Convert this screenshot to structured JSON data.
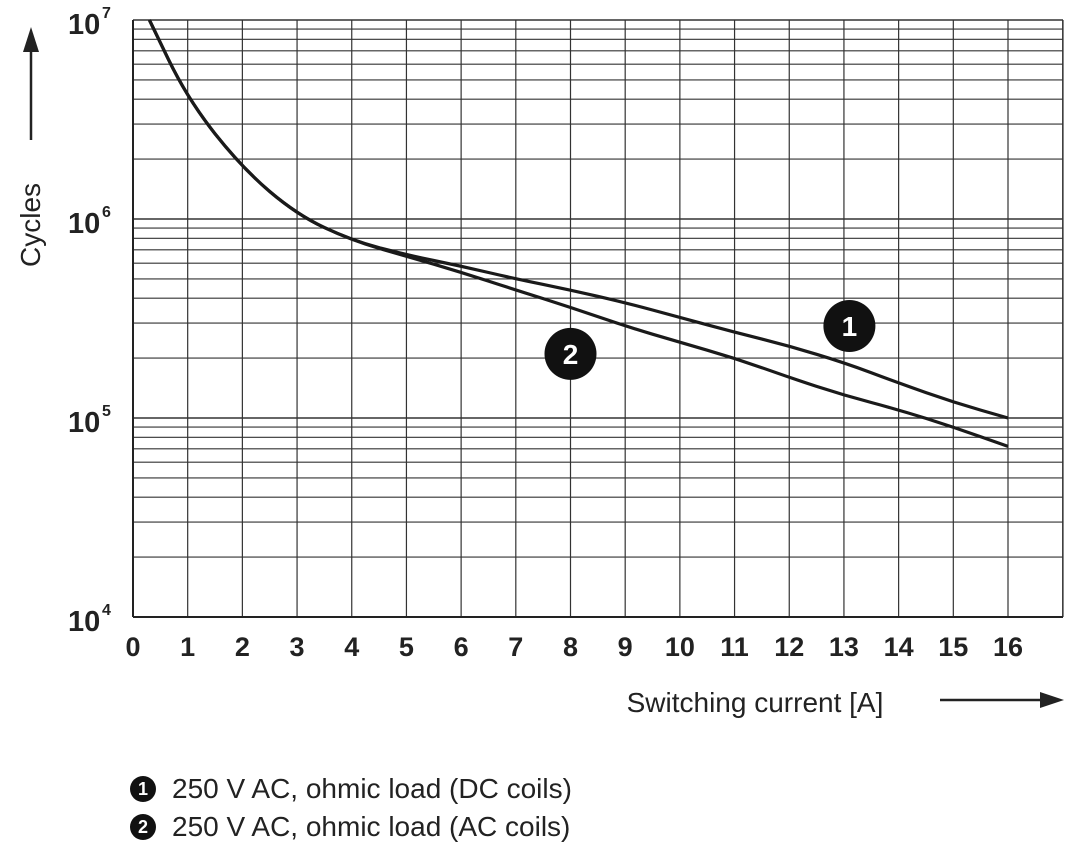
{
  "chart_data": {
    "type": "line",
    "xlabel": "Switching current [A]",
    "ylabel": "Cycles",
    "x_ticks": [
      "0",
      "1",
      "2",
      "3",
      "4",
      "5",
      "6",
      "7",
      "8",
      "9",
      "10",
      "11",
      "12",
      "13",
      "14",
      "15",
      "16"
    ],
    "y_ticks": [
      {
        "base": "10",
        "exp": "4",
        "value": 10000
      },
      {
        "base": "10",
        "exp": "5",
        "value": 100000
      },
      {
        "base": "10",
        "exp": "6",
        "value": 1000000
      },
      {
        "base": "10",
        "exp": "7",
        "value": 10000000
      }
    ],
    "xlim": [
      0,
      16
    ],
    "ylim": [
      10000,
      10000000
    ],
    "y_scale": "log",
    "grid": true,
    "series": [
      {
        "name": "250 V AC, ohmic load (DC coils)",
        "marker": "1",
        "x": [
          0.3,
          1,
          2,
          3,
          4,
          5,
          6,
          7,
          8,
          9,
          10,
          11,
          12,
          13,
          14,
          15,
          16
        ],
        "y": [
          10000000,
          4000000,
          1800000,
          1050000,
          780000,
          660000,
          580000,
          500000,
          440000,
          380000,
          320000,
          270000,
          230000,
          190000,
          150000,
          120000,
          100000
        ]
      },
      {
        "name": "250 V AC, ohmic load (AC coils)",
        "marker": "2",
        "x": [
          0.3,
          1,
          2,
          3,
          4,
          5,
          6,
          7,
          8,
          9,
          10,
          11,
          12,
          13,
          14,
          15,
          16
        ],
        "y": [
          10000000,
          4000000,
          1800000,
          1050000,
          780000,
          650000,
          540000,
          440000,
          360000,
          290000,
          240000,
          200000,
          160000,
          130000,
          110000,
          90000,
          72000
        ]
      }
    ],
    "markers": [
      {
        "label": "1",
        "x": 13.1,
        "y": 290000
      },
      {
        "label": "2",
        "x": 8.0,
        "y": 210000
      }
    ]
  },
  "legend": [
    {
      "badge": "1",
      "text": "250 V AC, ohmic load (DC coils)"
    },
    {
      "badge": "2",
      "text": "250 V AC, ohmic load (AC coils)"
    }
  ]
}
